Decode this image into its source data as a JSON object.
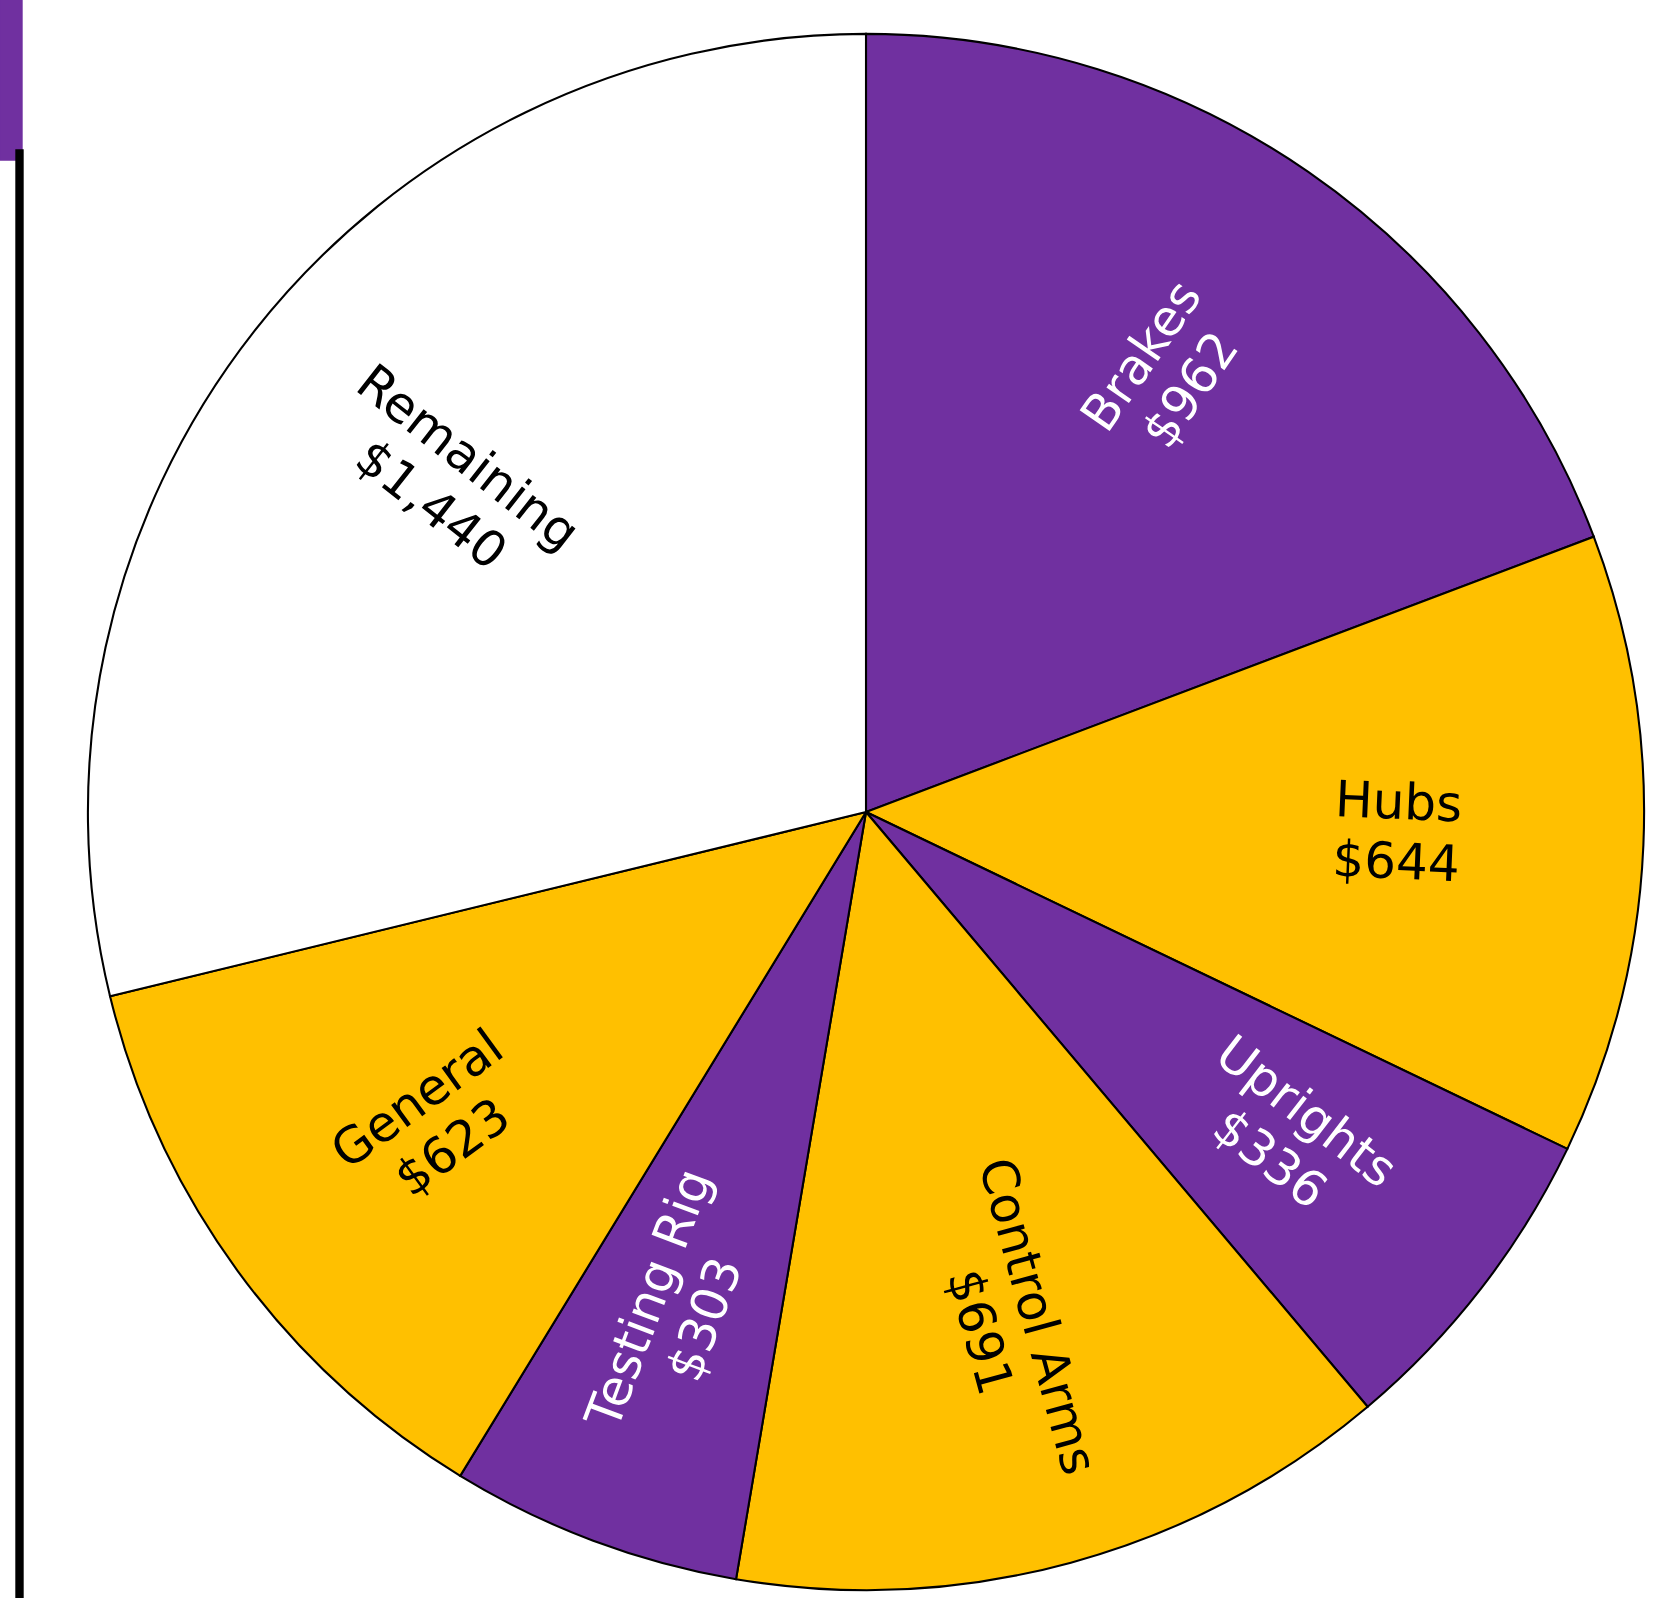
{
  "chart_data": {
    "type": "pie",
    "categories": [
      "Brakes",
      "Hubs",
      "Uprights",
      "Control Arms",
      "Testing Rig",
      "General",
      "Remaining"
    ],
    "values": [
      962,
      644,
      336,
      691,
      303,
      623,
      1440
    ],
    "value_labels": [
      "$962",
      "$644",
      "$336",
      "$691",
      "$303",
      "$623",
      "$1,440"
    ],
    "colors": [
      "#7030a0",
      "#ffc000",
      "#7030a0",
      "#ffc000",
      "#7030a0",
      "#ffc000",
      "#ffffff"
    ]
  }
}
